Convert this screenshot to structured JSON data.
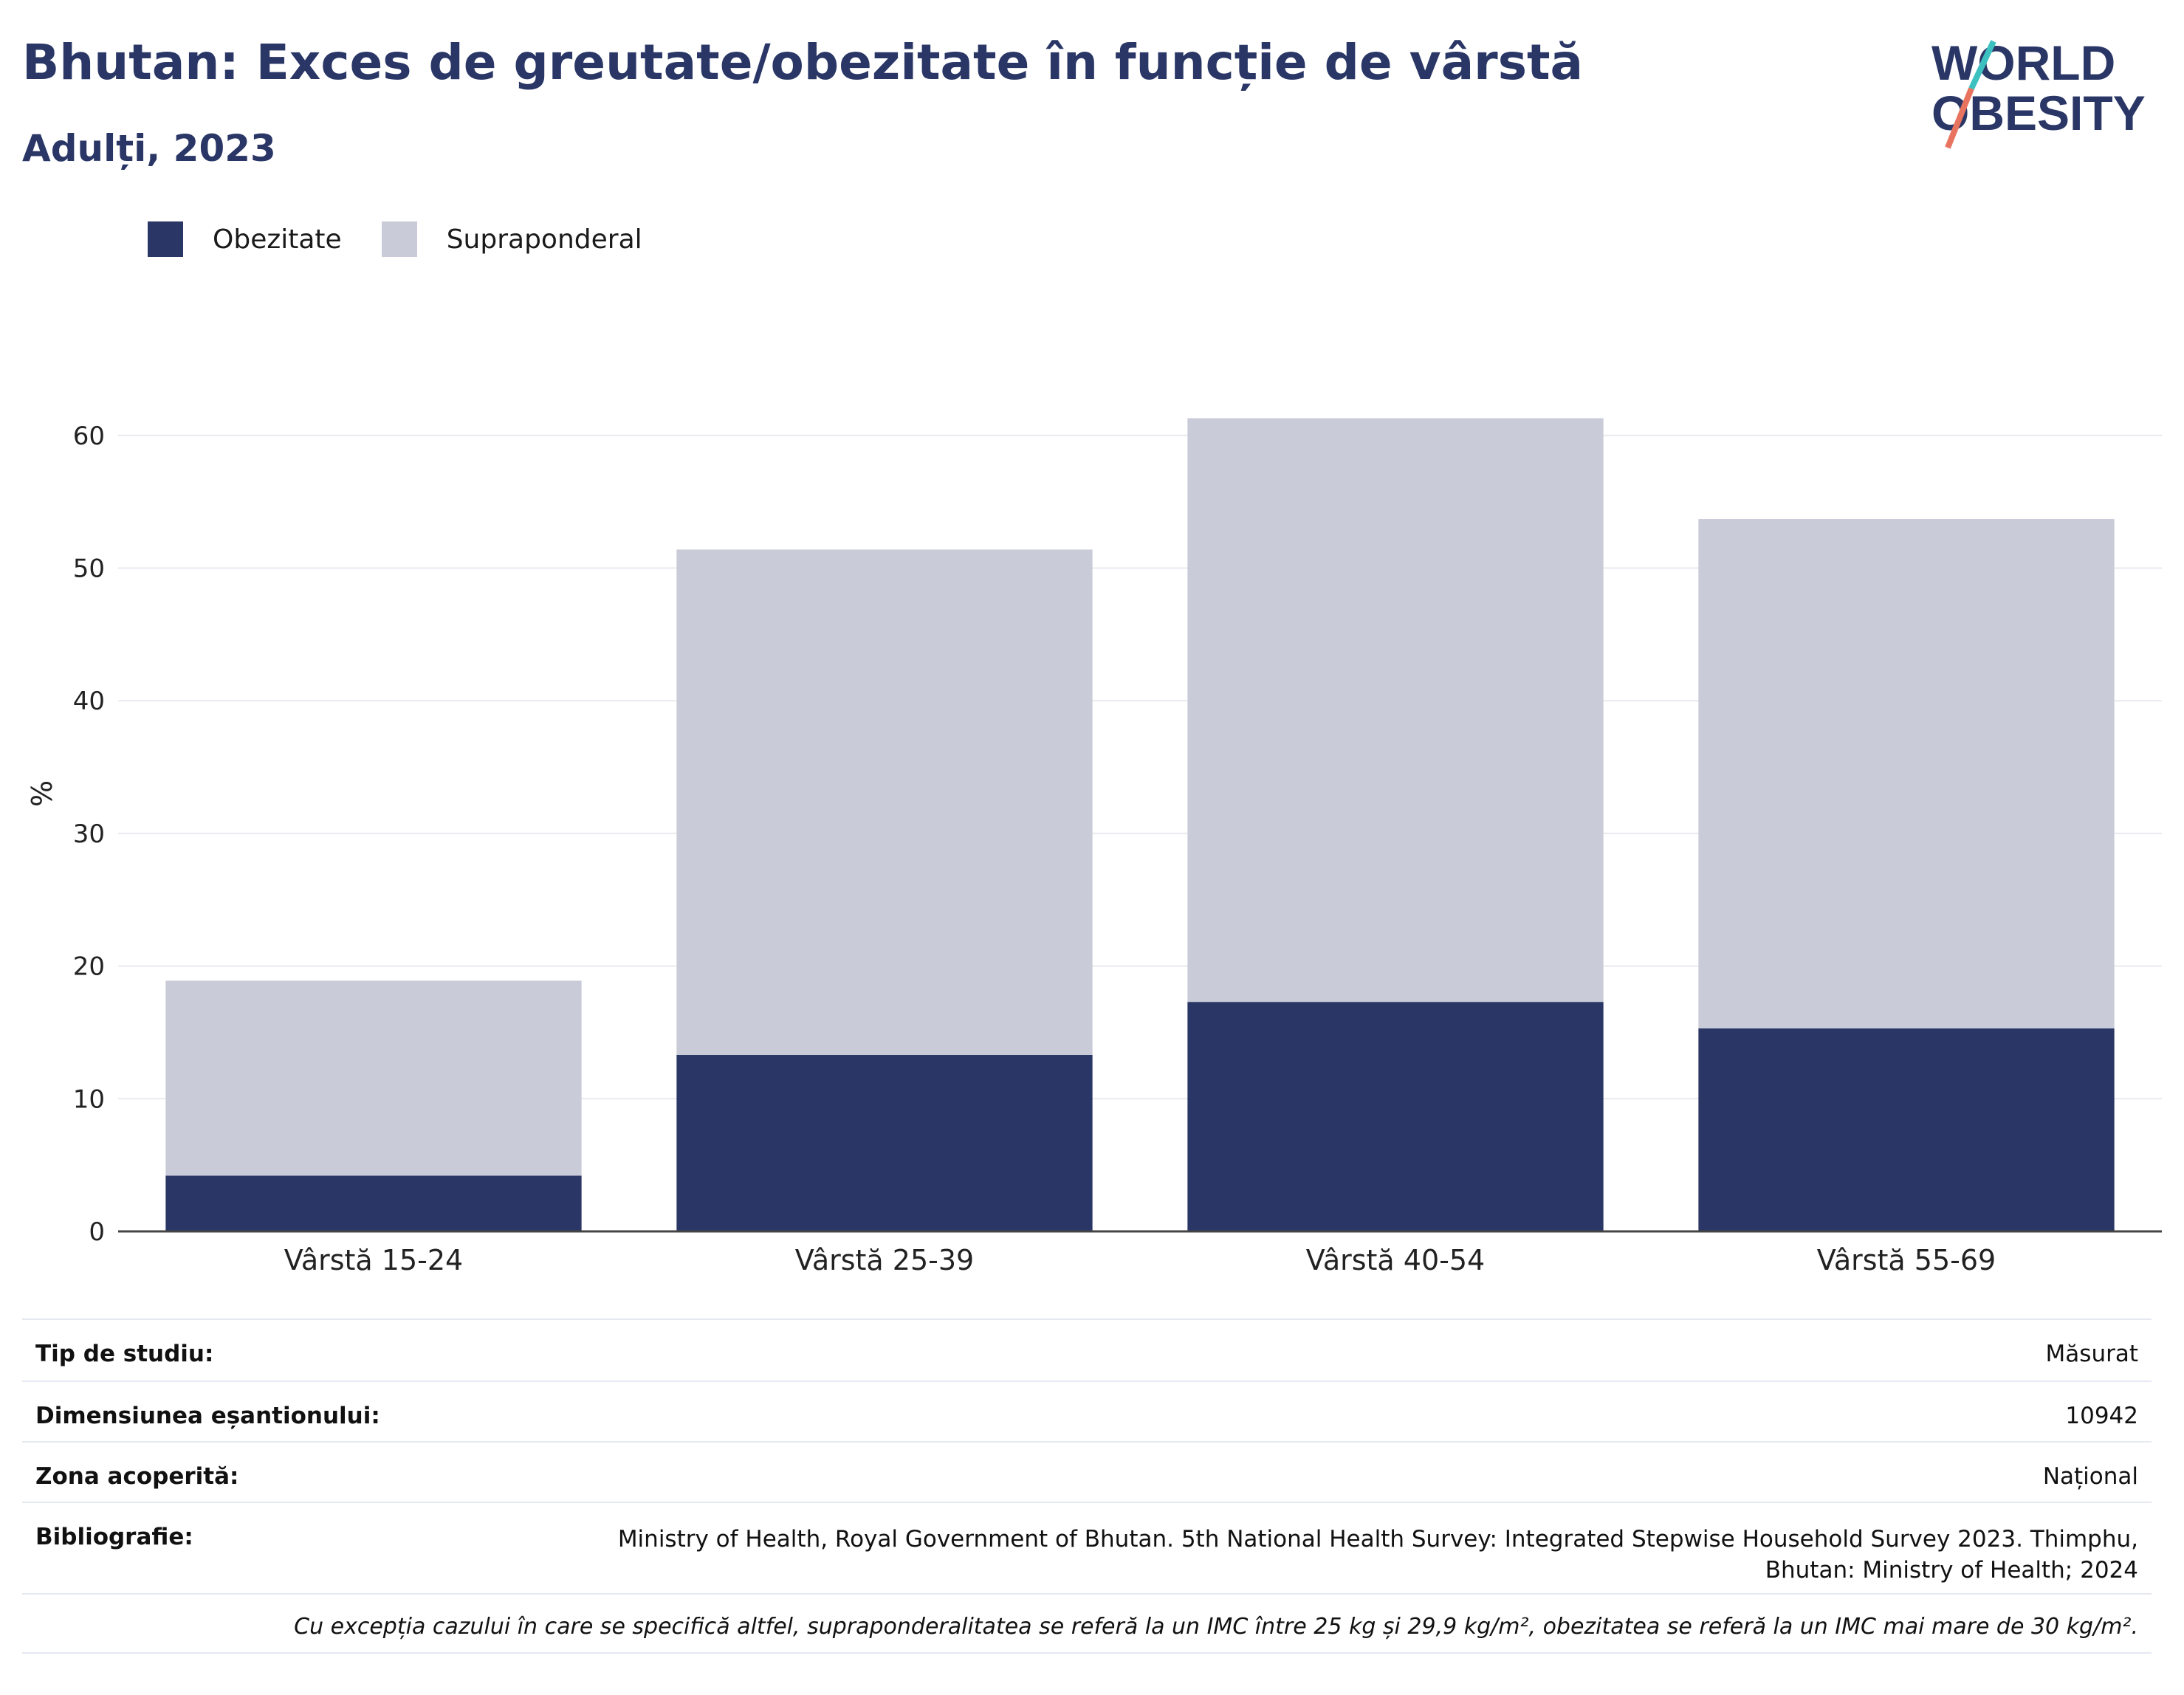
{
  "header": {
    "title": "Bhutan: Exces de greutate/obezitate în funcție de vârstă",
    "subtitle": "Adulți, 2023"
  },
  "logo": {
    "line1": "WORLD",
    "line2": "OBESITY"
  },
  "legend": [
    {
      "label": "Obezitate",
      "color": "#2a3766"
    },
    {
      "label": "Supraponderal",
      "color": "#c9ccd8"
    }
  ],
  "chart_data": {
    "type": "bar",
    "stacked": true,
    "categories": [
      "Vârstă 15-24",
      "Vârstă 25-39",
      "Vârstă 40-54",
      "Vârstă 55-69"
    ],
    "series": [
      {
        "name": "Obezitate",
        "values": [
          4.2,
          13.3,
          17.3,
          15.3
        ],
        "color": "#2a3766"
      },
      {
        "name": "Supraponderal",
        "values": [
          14.7,
          38.1,
          44.0,
          38.4
        ],
        "color": "#c9ccd8"
      }
    ],
    "ylabel": "%",
    "ylim": [
      0,
      65
    ],
    "yticks": [
      0,
      10,
      20,
      30,
      40,
      50,
      60
    ],
    "grid": true,
    "legend_position": "top-left"
  },
  "meta": {
    "study_type_label": "Tip de studiu:",
    "study_type_value": "Măsurat",
    "sample_size_label": "Dimensiunea eșantionului:",
    "sample_size_value": "10942",
    "coverage_label": "Zona acoperită:",
    "coverage_value": "Național",
    "bibliography_label": "Bibliografie:",
    "bibliography_value_line1": "Ministry of Health, Royal Government of Bhutan. 5th National Health Survey: Integrated Stepwise Household Survey 2023. Thimphu,",
    "bibliography_value_line2": "Bhutan: Ministry of Health; 2024",
    "note": "Cu excepția cazului în care se specifică altfel, supraponderalitatea se referă la un IMC între 25 kg și 29,9 kg/m², obezitatea se referă la un IMC mai mare de 30 kg/m²."
  }
}
